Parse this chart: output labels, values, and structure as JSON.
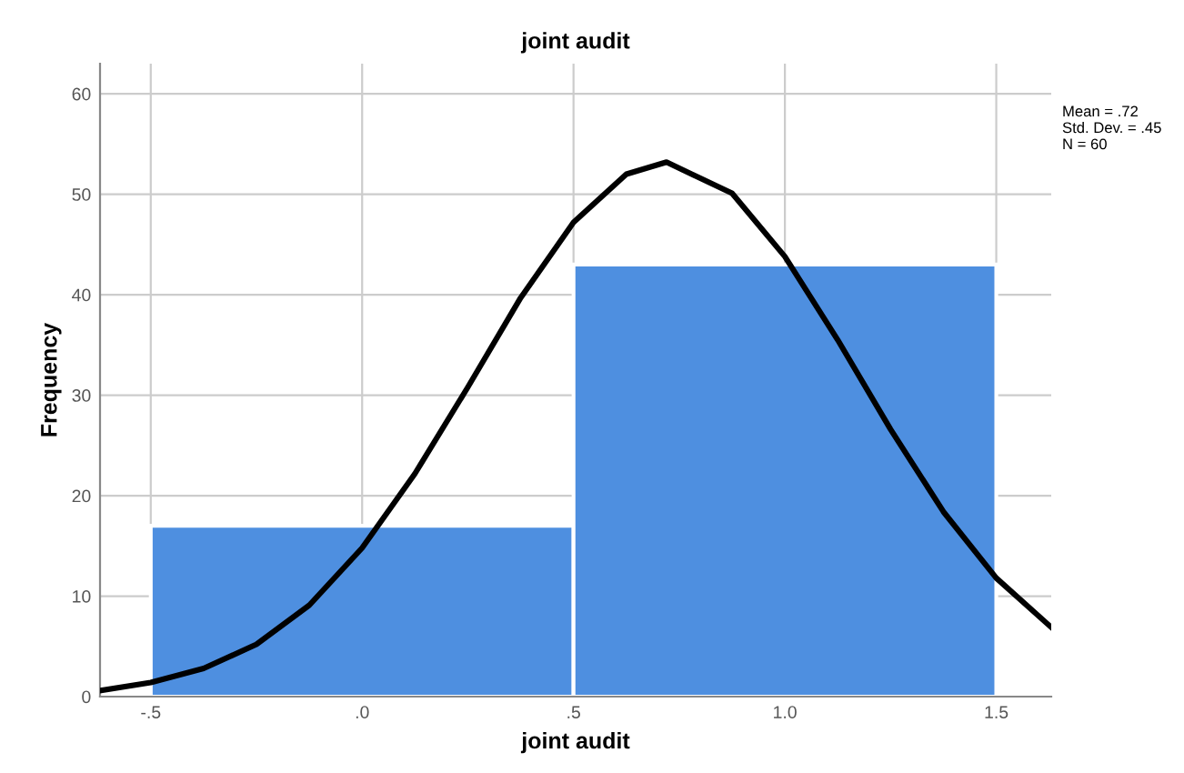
{
  "chart_data": {
    "type": "histogram",
    "title": "joint audit",
    "xlabel": "joint audit",
    "ylabel": "Frequency",
    "bins": [
      -0.5,
      0.5,
      1.5
    ],
    "values": [
      17,
      43
    ],
    "color": "#4e8fe0",
    "series": [
      {
        "type": "line",
        "color": "#000000",
        "x": [
          -0.62,
          -0.5,
          -0.375,
          -0.25,
          -0.125,
          0,
          0.125,
          0.25,
          0.375,
          0.5,
          0.625,
          0.72,
          0.875,
          1.0,
          1.125,
          1.25,
          1.375,
          1.5,
          1.63
        ],
        "values": [
          0.6,
          1.4,
          2.8,
          5.2,
          9.1,
          14.8,
          22.2,
          30.8,
          39.7,
          47.2,
          52.0,
          53.2,
          50.1,
          43.8,
          35.5,
          26.6,
          18.4,
          11.8,
          6.9
        ]
      }
    ],
    "xlim": [
      -0.62,
      1.63
    ],
    "ylim": [
      0,
      63
    ],
    "xticks": [
      {
        "value": -0.5,
        "label": "-.5"
      },
      {
        "value": 0,
        "label": ".0"
      },
      {
        "value": 0.5,
        "label": ".5"
      },
      {
        "value": 1.0,
        "label": "1.0"
      },
      {
        "value": 1.5,
        "label": "1.5"
      }
    ],
    "yticks": [
      0,
      10,
      20,
      30,
      40,
      50,
      60
    ],
    "grid": true,
    "annotations": [
      "Mean = .72",
      "Std. Dev. = .45",
      "N = 60"
    ]
  }
}
